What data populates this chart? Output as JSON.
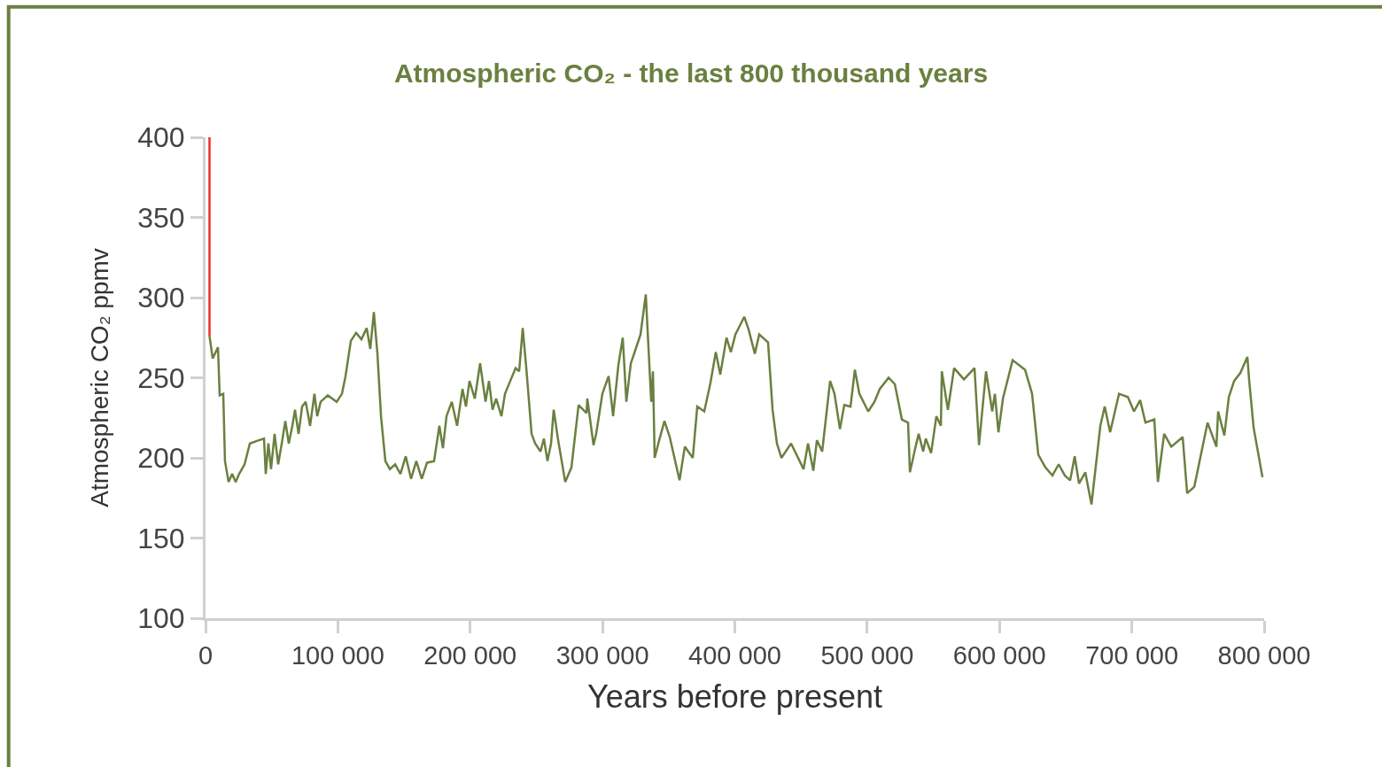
{
  "chart_data": {
    "type": "line",
    "title": "Atmospheric CO₂ - the last 800 thousand years",
    "xlabel": "Years before present",
    "ylabel": "Atmospheric CO₂ ppmv",
    "series": [
      {
        "color": "#6a8040",
        "x": [
          3000,
          5400,
          9400,
          10700,
          13400,
          14700,
          17400,
          20100,
          22800,
          25400,
          29500,
          33500,
          40200,
          44200,
          45500,
          47500,
          49500,
          52200,
          54900,
          57600,
          60300,
          62900,
          65600,
          67600,
          70300,
          73000,
          75700,
          79000,
          82300,
          84400,
          87000,
          92400,
          99100,
          103100,
          105800,
          109800,
          113800,
          117800,
          121800,
          124500,
          127200,
          129900,
          132600,
          135900,
          139300,
          143300,
          147300,
          151300,
          155300,
          159300,
          163400,
          167400,
          172700,
          176700,
          179400,
          182100,
          186100,
          190100,
          194200,
          196800,
          199500,
          203500,
          207500,
          211600,
          214200,
          216900,
          219600,
          223600,
          226300,
          230300,
          234300,
          237000,
          239700,
          242400,
          246400,
          249100,
          253100,
          255700,
          258400,
          261100,
          263100,
          266500,
          271800,
          276500,
          281900,
          287900,
          288500,
          293200,
          295200,
          299900,
          304600,
          308000,
          312000,
          315300,
          318000,
          321400,
          324700,
          328700,
          332700,
          336800,
          338100,
          339400,
          342800,
          346800,
          350800,
          358200,
          362200,
          368200,
          371600,
          376900,
          381600,
          385600,
          389000,
          393700,
          397000,
          400400,
          407100,
          410400,
          415100,
          418400,
          425100,
          428500,
          431800,
          435200,
          442500,
          451900,
          455300,
          459300,
          462000,
          466000,
          472000,
          475300,
          479400,
          482700,
          487400,
          490700,
          494100,
          500800,
          505500,
          509500,
          516200,
          520900,
          526200,
          530900,
          532300,
          536300,
          538900,
          542300,
          544300,
          548300,
          552300,
          555700,
          556400,
          561000,
          565700,
          573100,
          581100,
          584500,
          589800,
          594500,
          596500,
          599200,
          602600,
          609900,
          619300,
          624600,
          629300,
          634700,
          640000,
          644700,
          649400,
          653400,
          656800,
          660100,
          664800,
          669500,
          676200,
          679500,
          683600,
          690300,
          697000,
          701600,
          706300,
          710300,
          717000,
          719700,
          724400,
          729800,
          738400,
          741800,
          747200,
          757200,
          763900,
          765200,
          769900,
          773300,
          777300,
          782000,
          787300,
          788700,
          792000,
          798700
        ],
        "values": [
          276,
          262,
          269,
          239,
          240,
          198,
          185,
          190,
          185,
          190,
          196,
          209,
          211,
          212,
          190,
          209,
          193,
          215,
          196,
          209,
          223,
          209,
          220,
          230,
          215,
          232,
          235,
          220,
          240,
          226,
          235,
          239,
          235,
          240,
          251,
          273,
          278,
          274,
          281,
          268,
          291,
          265,
          226,
          198,
          193,
          196,
          190,
          201,
          187,
          198,
          187,
          197,
          198,
          220,
          206,
          226,
          235,
          220,
          243,
          232,
          248,
          237,
          259,
          235,
          248,
          230,
          237,
          226,
          240,
          248,
          256,
          254,
          281,
          256,
          215,
          209,
          204,
          212,
          198,
          209,
          230,
          211,
          185,
          194,
          233,
          228,
          237,
          208,
          215,
          240,
          251,
          226,
          258,
          275,
          235,
          259,
          267,
          277,
          302,
          235,
          254,
          200,
          211,
          223,
          213,
          186,
          207,
          200,
          232,
          229,
          247,
          266,
          252,
          275,
          266,
          277,
          288,
          280,
          265,
          277,
          272,
          230,
          209,
          200,
          209,
          193,
          209,
          192,
          211,
          204,
          248,
          240,
          218,
          233,
          232,
          255,
          240,
          229,
          235,
          243,
          250,
          246,
          224,
          222,
          191,
          206,
          215,
          204,
          212,
          203,
          226,
          220,
          254,
          230,
          256,
          249,
          256,
          208,
          254,
          229,
          240,
          216,
          237,
          261,
          255,
          240,
          202,
          194,
          189,
          196,
          189,
          186,
          201,
          184,
          191,
          171,
          220,
          232,
          216,
          240,
          238,
          229,
          236,
          222,
          224,
          185,
          215,
          207,
          213,
          178,
          182,
          222,
          207,
          229,
          214,
          238,
          248,
          253,
          263,
          248,
          219,
          188
        ]
      },
      {
        "color": "#e8312a",
        "x": [
          3000,
          3000
        ],
        "values": [
          276,
          400
        ]
      }
    ],
    "xlim": [
      0,
      800000
    ],
    "xticks": [
      0,
      {
        "value": 100000,
        "label": "100 000"
      },
      {
        "value": 200000,
        "label": "200 000"
      },
      {
        "value": 300000,
        "label": "300 000"
      },
      {
        "value": 400000,
        "label": "400 000"
      },
      {
        "value": 500000,
        "label": "500 000"
      },
      {
        "value": 600000,
        "label": "600 000"
      },
      {
        "value": 700000,
        "label": "700 000"
      },
      {
        "value": 800000,
        "label": "800 000"
      }
    ],
    "ylim": [
      100,
      400
    ],
    "yticks": [
      100,
      150,
      200,
      250,
      300,
      350,
      400
    ],
    "marker": "none",
    "line_style": "solid"
  }
}
